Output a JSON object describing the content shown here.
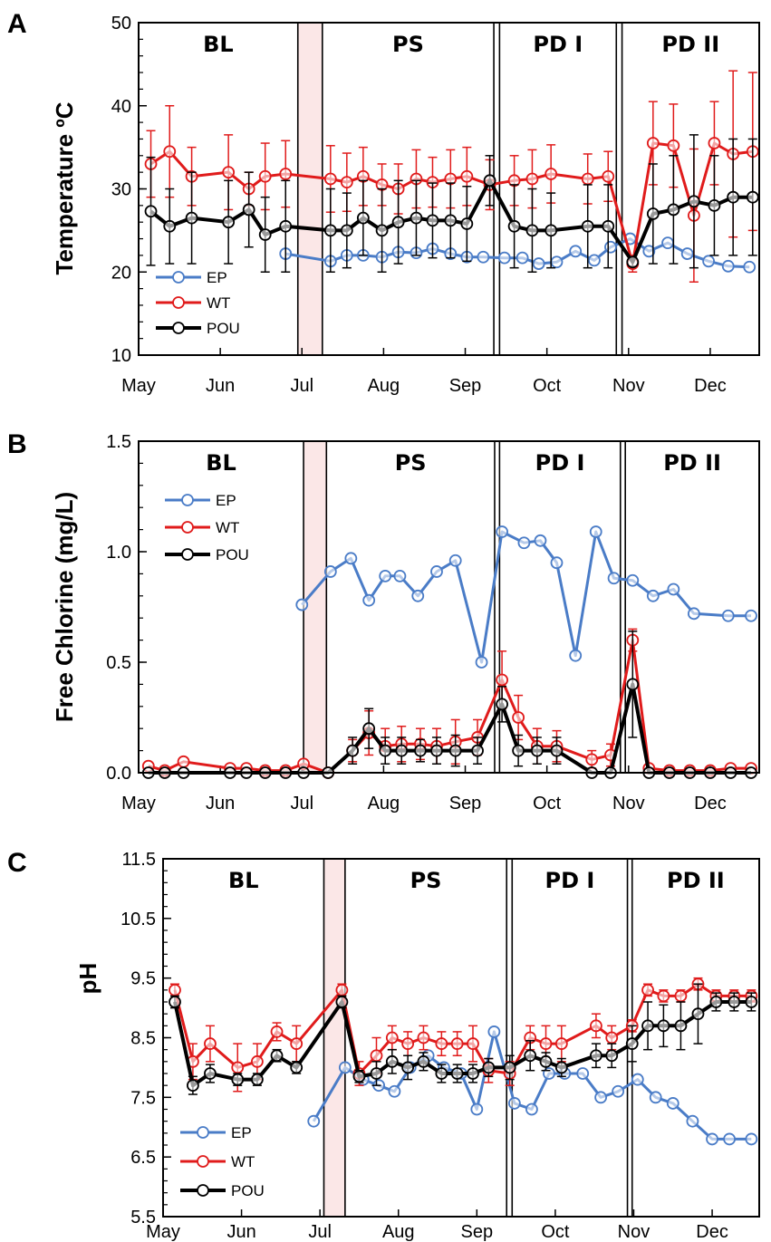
{
  "colors": {
    "EP": "#4a7cc7",
    "WT": "#e01b1b",
    "POU": "#000000",
    "shade": "#fbe7e7"
  },
  "chart_data": [
    {
      "type": "line",
      "panel_label": "A",
      "ylabel": "Temperature ºC",
      "ylim": [
        10,
        50
      ],
      "yticks": [
        10,
        20,
        30,
        40,
        50
      ],
      "ytick_labels": [
        "10",
        "20",
        "30",
        "40",
        "50"
      ],
      "xlim": [
        0,
        7.6
      ],
      "month_labels": [
        "May",
        "Jun",
        "Jul",
        "Aug",
        "Sep",
        "Oct",
        "Nov",
        "Dec"
      ],
      "phases": [
        {
          "label": "BL",
          "start": 0,
          "end": 1.95
        },
        {
          "label": "PS",
          "start": 2.25,
          "end": 4.35
        },
        {
          "label": "PD I",
          "start": 4.42,
          "end": 5.85
        },
        {
          "label": "PD II",
          "start": 5.92,
          "end": 7.6
        }
      ],
      "shade": [
        1.95,
        2.25
      ],
      "phase_lines": [
        1.95,
        2.25,
        4.35,
        4.42,
        5.85,
        5.92
      ],
      "legend": {
        "position": "bottom-left",
        "entries": [
          "EP",
          "WT",
          "POU"
        ]
      },
      "series": [
        {
          "name": "EP",
          "x": [
            1.8,
            2.35,
            2.55,
            2.75,
            2.98,
            3.18,
            3.4,
            3.6,
            3.82,
            4.02,
            4.22,
            4.48,
            4.7,
            4.9,
            5.12,
            5.35,
            5.58,
            5.78,
            6.02,
            6.25,
            6.48,
            6.72,
            6.98,
            7.22,
            7.48
          ],
          "y": [
            22.2,
            21.3,
            22,
            22,
            21.8,
            22.4,
            22.3,
            22.8,
            22.2,
            21.8,
            21.8,
            21.7,
            21.7,
            21,
            21.2,
            22.5,
            21.4,
            23,
            24,
            22.5,
            23.5,
            22.2,
            21.3,
            20.7,
            20.6
          ],
          "err": []
        },
        {
          "name": "WT",
          "x": [
            0.15,
            0.38,
            0.65,
            1.1,
            1.35,
            1.55,
            1.8,
            2.35,
            2.55,
            2.75,
            2.98,
            3.18,
            3.4,
            3.6,
            3.82,
            4.02,
            4.3,
            4.6,
            4.82,
            5.05,
            5.5,
            5.75,
            6.05,
            6.3,
            6.55,
            6.8,
            7.05,
            7.28,
            7.52
          ],
          "y": [
            33,
            34.5,
            31.5,
            32,
            30,
            31.5,
            31.8,
            31.2,
            30.8,
            31.5,
            30.5,
            30,
            31.2,
            30.8,
            31.2,
            31.5,
            30.5,
            31,
            31.2,
            31.8,
            31.2,
            31.5,
            21,
            35.5,
            35.2,
            26.8,
            35.5,
            34.2,
            34.5
          ],
          "err": [
            4,
            5.5,
            3.5,
            4.5,
            2,
            4,
            4,
            4,
            3.5,
            3.5,
            2.5,
            3,
            3.5,
            3,
            3.5,
            3.5,
            3,
            3,
            3.5,
            3.5,
            3,
            3,
            1,
            5,
            5,
            8,
            5,
            10,
            9.5
          ]
        },
        {
          "name": "POU",
          "x": [
            0.15,
            0.38,
            0.65,
            1.1,
            1.35,
            1.55,
            1.8,
            2.35,
            2.55,
            2.75,
            2.98,
            3.18,
            3.4,
            3.6,
            3.82,
            4.02,
            4.3,
            4.6,
            4.82,
            5.05,
            5.5,
            5.75,
            6.05,
            6.3,
            6.55,
            6.8,
            7.05,
            7.28,
            7.52
          ],
          "y": [
            27.3,
            25.5,
            26.5,
            26,
            27.5,
            24.5,
            25.5,
            25,
            25,
            26.5,
            25,
            26,
            26.5,
            26.2,
            26.2,
            25.8,
            31,
            25.5,
            25,
            25,
            25.5,
            25.5,
            21.2,
            27,
            27.5,
            28.5,
            28,
            29,
            29
          ],
          "err": [
            6.5,
            4.5,
            5.5,
            5,
            4.5,
            4.5,
            5.5,
            5,
            4.5,
            4.5,
            5,
            5,
            4.5,
            4.5,
            4.5,
            4.5,
            3,
            5,
            5,
            4.5,
            5,
            5,
            0.5,
            6,
            6.5,
            8,
            6,
            7,
            7
          ]
        }
      ]
    },
    {
      "type": "line",
      "panel_label": "B",
      "ylabel": "Free Chlorine (mg/L)",
      "ylim": [
        0,
        1.5
      ],
      "yticks": [
        0,
        0.5,
        1,
        1.5
      ],
      "ytick_labels": [
        "0.0",
        "0.5",
        "1.0",
        "1.5"
      ],
      "xlim": [
        0,
        7.6
      ],
      "month_labels": [
        "May",
        "Jun",
        "Jul",
        "Aug",
        "Sep",
        "Oct",
        "Nov",
        "Dec"
      ],
      "phases": [
        {
          "label": "BL",
          "start": 0,
          "end": 2.02
        },
        {
          "label": "PS",
          "start": 2.3,
          "end": 4.36
        },
        {
          "label": "PD I",
          "start": 4.42,
          "end": 5.9
        },
        {
          "label": "PD II",
          "start": 5.96,
          "end": 7.6
        }
      ],
      "shade": [
        2.02,
        2.3
      ],
      "phase_lines": [
        2.02,
        2.3,
        4.36,
        4.42,
        5.9,
        5.96
      ],
      "legend": {
        "position": "top-left",
        "entries": [
          "EP",
          "WT",
          "POU"
        ]
      },
      "series": [
        {
          "name": "EP",
          "x": [
            2.0,
            2.35,
            2.6,
            2.82,
            3.02,
            3.2,
            3.42,
            3.65,
            3.88,
            4.2,
            4.45,
            4.72,
            4.92,
            5.12,
            5.35,
            5.6,
            5.82,
            6.05,
            6.3,
            6.55,
            6.8,
            7.22,
            7.5
          ],
          "y": [
            0.76,
            0.91,
            0.97,
            0.78,
            0.89,
            0.89,
            0.8,
            0.91,
            0.96,
            0.5,
            1.09,
            1.04,
            1.05,
            0.95,
            0.53,
            1.09,
            0.88,
            0.87,
            0.8,
            0.83,
            0.72,
            0.71,
            0.71
          ],
          "err": []
        },
        {
          "name": "WT",
          "x": [
            0.12,
            0.32,
            0.55,
            1.12,
            1.32,
            1.55,
            1.8,
            2.02,
            2.32,
            2.62,
            2.82,
            3.02,
            3.22,
            3.45,
            3.65,
            3.88,
            4.15,
            4.45,
            4.65,
            4.88,
            5.12,
            5.55,
            5.78,
            6.05,
            6.25,
            6.5,
            6.75,
            7.0,
            7.25,
            7.5
          ],
          "y": [
            0.03,
            0.01,
            0.05,
            0.02,
            0.02,
            0.01,
            0.01,
            0.04,
            0,
            0.1,
            0.18,
            0.12,
            0.13,
            0.13,
            0.12,
            0.14,
            0.16,
            0.42,
            0.25,
            0.12,
            0.12,
            0.06,
            0.08,
            0.6,
            0.02,
            0.01,
            0.01,
            0.01,
            0.02,
            0.02
          ],
          "err": [
            0,
            0,
            0,
            0,
            0,
            0,
            0,
            0,
            0,
            0.05,
            0.1,
            0.08,
            0.08,
            0.07,
            0.08,
            0.1,
            0.08,
            0.13,
            0.1,
            0.08,
            0.07,
            0.04,
            0.05,
            0.05,
            0,
            0,
            0,
            0,
            0,
            0
          ]
        },
        {
          "name": "POU",
          "x": [
            0.12,
            0.32,
            0.55,
            1.12,
            1.32,
            1.55,
            1.8,
            2.02,
            2.32,
            2.62,
            2.82,
            3.02,
            3.22,
            3.45,
            3.65,
            3.88,
            4.15,
            4.45,
            4.65,
            4.88,
            5.12,
            5.55,
            5.78,
            6.05,
            6.25,
            6.5,
            6.75,
            7.0,
            7.25,
            7.5
          ],
          "y": [
            0,
            0,
            0,
            0,
            0,
            0,
            0,
            0,
            0,
            0.1,
            0.2,
            0.1,
            0.1,
            0.1,
            0.1,
            0.1,
            0.1,
            0.31,
            0.1,
            0.1,
            0.1,
            0,
            0,
            0.4,
            0,
            0,
            0,
            0,
            0,
            0
          ],
          "err": [
            0,
            0,
            0,
            0,
            0,
            0,
            0,
            0,
            0,
            0.06,
            0.09,
            0.06,
            0.06,
            0.05,
            0.06,
            0.07,
            0.06,
            0.08,
            0.07,
            0.06,
            0.06,
            0,
            0,
            0.24,
            0,
            0,
            0,
            0,
            0,
            0
          ]
        }
      ]
    },
    {
      "type": "line",
      "panel_label": "C",
      "ylabel": "pH",
      "ylim": [
        5.5,
        11.5
      ],
      "yticks": [
        5.5,
        6.5,
        7.5,
        8.5,
        9.5,
        10.5,
        11.5
      ],
      "ytick_labels": [
        "5.5",
        "6.5",
        "7.5",
        "8.5",
        "9.5",
        "10.5",
        "11.5"
      ],
      "xlim": [
        0,
        7.6
      ],
      "month_labels": [
        "May",
        "Jun",
        "Jul",
        "Aug",
        "Sep",
        "Oct",
        "Nov",
        "Dec"
      ],
      "phases": [
        {
          "label": "BL",
          "start": 0,
          "end": 2.05
        },
        {
          "label": "PS",
          "start": 2.32,
          "end": 4.38
        },
        {
          "label": "PD I",
          "start": 4.45,
          "end": 5.92
        },
        {
          "label": "PD II",
          "start": 5.98,
          "end": 7.6
        }
      ],
      "shade": [
        2.05,
        2.32
      ],
      "phase_lines": [
        2.05,
        2.32,
        4.38,
        4.45,
        5.92,
        5.98
      ],
      "legend": {
        "position": "bottom-left",
        "entries": [
          "EP",
          "WT",
          "POU"
        ]
      },
      "series": [
        {
          "name": "EP",
          "x": [
            1.92,
            2.32,
            2.55,
            2.75,
            2.95,
            3.15,
            3.38,
            3.58,
            3.8,
            4.0,
            4.22,
            4.48,
            4.7,
            4.92,
            5.12,
            5.35,
            5.58,
            5.8,
            6.05,
            6.28,
            6.5,
            6.75,
            7.0,
            7.22,
            7.5
          ],
          "y": [
            7.1,
            8.0,
            7.8,
            7.7,
            7.6,
            8.0,
            8.2,
            8.0,
            7.9,
            7.3,
            8.6,
            7.4,
            7.3,
            7.9,
            7.9,
            7.9,
            7.5,
            7.6,
            7.8,
            7.5,
            7.4,
            7.1,
            6.8,
            6.8,
            6.8
          ],
          "err": []
        },
        {
          "name": "WT",
          "x": [
            0.15,
            0.38,
            0.6,
            0.95,
            1.2,
            1.45,
            1.7,
            2.28,
            2.5,
            2.72,
            2.92,
            3.12,
            3.32,
            3.55,
            3.75,
            3.95,
            4.15,
            4.42,
            4.68,
            4.88,
            5.08,
            5.52,
            5.72,
            5.98,
            6.18,
            6.38,
            6.6,
            6.82,
            7.05,
            7.28,
            7.5
          ],
          "y": [
            9.3,
            8.1,
            8.4,
            8.0,
            8.1,
            8.6,
            8.4,
            9.3,
            7.9,
            8.2,
            8.5,
            8.4,
            8.5,
            8.4,
            8.4,
            8.4,
            7.95,
            7.9,
            8.5,
            8.4,
            8.4,
            8.7,
            8.5,
            8.7,
            9.3,
            9.2,
            9.2,
            9.4,
            9.2,
            9.2,
            9.2
          ],
          "err": [
            0.1,
            0.3,
            0.3,
            0.4,
            0.3,
            0.15,
            0.3,
            0.1,
            0.2,
            0.3,
            0.2,
            0.2,
            0.2,
            0.2,
            0.2,
            0.3,
            0.2,
            0.2,
            0.2,
            0.3,
            0.3,
            0.2,
            0.2,
            0.1,
            0.1,
            0.1,
            0.1,
            0.1,
            0.1,
            0.1,
            0.1
          ]
        },
        {
          "name": "POU",
          "x": [
            0.15,
            0.38,
            0.6,
            0.95,
            1.2,
            1.45,
            1.7,
            2.28,
            2.5,
            2.72,
            2.92,
            3.12,
            3.32,
            3.55,
            3.75,
            3.95,
            4.15,
            4.42,
            4.68,
            4.88,
            5.08,
            5.52,
            5.72,
            5.98,
            6.18,
            6.38,
            6.6,
            6.82,
            7.05,
            7.28,
            7.5
          ],
          "y": [
            9.1,
            7.7,
            7.9,
            7.8,
            7.8,
            8.2,
            8.0,
            9.1,
            7.85,
            7.9,
            8.1,
            8.0,
            8.1,
            7.9,
            7.9,
            7.9,
            8.0,
            8.0,
            8.2,
            8.1,
            8.0,
            8.2,
            8.2,
            8.4,
            8.7,
            8.7,
            8.7,
            8.9,
            9.1,
            9.1,
            9.1
          ],
          "err": [
            0.1,
            0.15,
            0.15,
            0.1,
            0.1,
            0.1,
            0.1,
            0.1,
            0.1,
            0.2,
            0.2,
            0.2,
            0.15,
            0.15,
            0.15,
            0.15,
            0.15,
            0.2,
            0.25,
            0.15,
            0.15,
            0.2,
            0.2,
            0.3,
            0.4,
            0.35,
            0.4,
            0.5,
            0.15,
            0.15,
            0.15
          ]
        }
      ]
    }
  ]
}
